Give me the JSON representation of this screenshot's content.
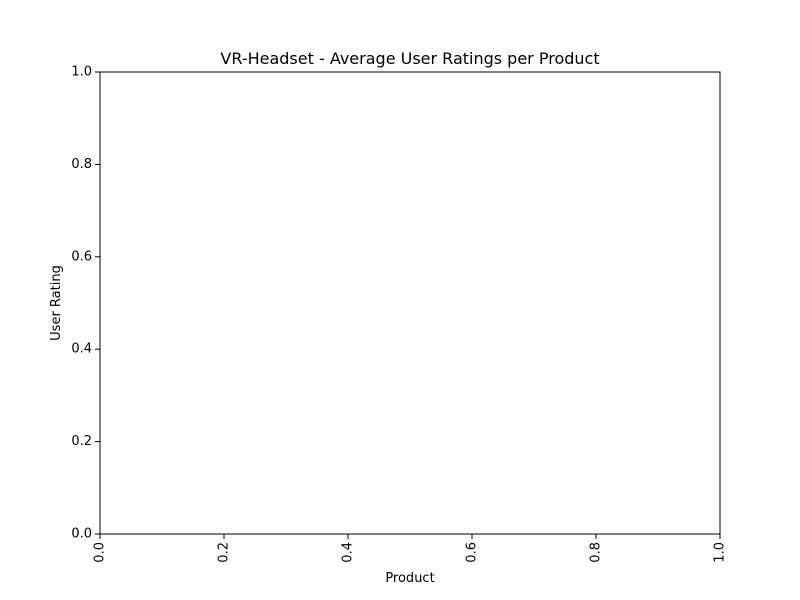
{
  "chart_data": {
    "type": "bar",
    "title": "VR-Headset - Average User Ratings per Product",
    "xlabel": "Product",
    "ylabel": "User Rating",
    "categories": [],
    "values": [],
    "xlim": [
      0.0,
      1.0
    ],
    "ylim": [
      0.0,
      1.0
    ],
    "x_ticks": [
      "0.0",
      "0.2",
      "0.4",
      "0.6",
      "0.8",
      "1.0"
    ],
    "y_ticks": [
      "0.0",
      "0.2",
      "0.4",
      "0.6",
      "0.8",
      "1.0"
    ],
    "grid": false,
    "legend": "none"
  }
}
